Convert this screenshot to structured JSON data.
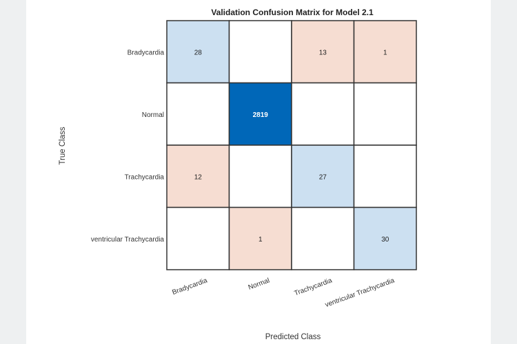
{
  "chart_data": {
    "type": "heatmap",
    "title": "Validation Confusion Matrix for Model 2.1",
    "xlabel": "Predicted Class",
    "ylabel": "True Class",
    "classes": [
      "Bradycardia",
      "Normal",
      "Trachycardia",
      "ventricular Trachycardia"
    ],
    "matrix": [
      [
        28,
        null,
        13,
        1
      ],
      [
        null,
        2819,
        null,
        null
      ],
      [
        12,
        null,
        27,
        null
      ],
      [
        null,
        1,
        null,
        30
      ]
    ],
    "colors": {
      "diag_light": "#cce0f1",
      "diag_dark": "#0067b8",
      "offdiag": "#f6ddd2",
      "empty": "#ffffff",
      "grid": "#333333"
    }
  }
}
